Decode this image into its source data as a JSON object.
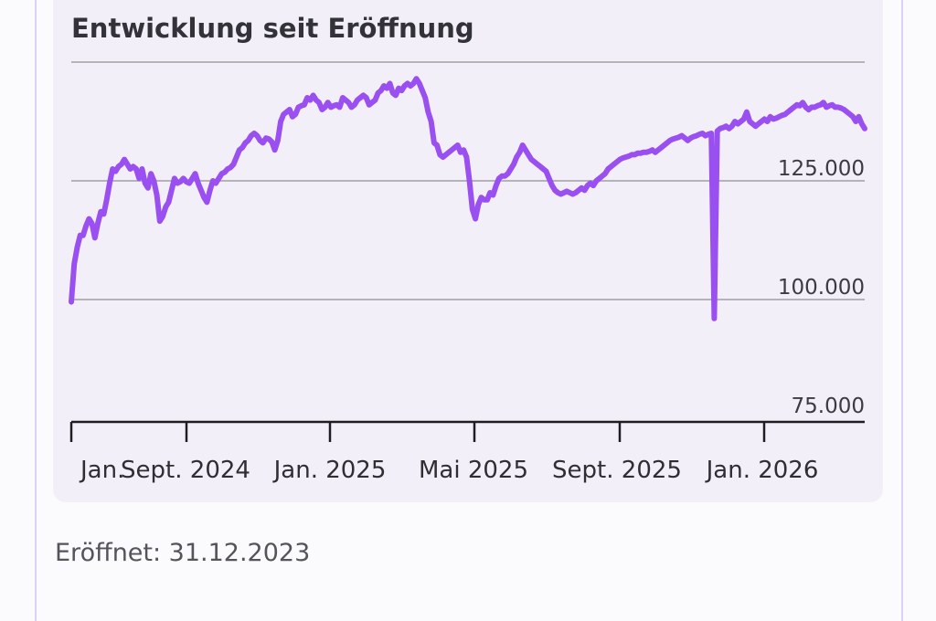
{
  "chart_title": "Entwicklung seit Eröffnung",
  "opened_label": "Eröffnet: 31.12.2023",
  "colors": {
    "line": "#9a50f0",
    "grid": "#b4b3b8",
    "card": "#f3eff9",
    "outer_border": "#dcd0f3"
  },
  "chart_data": {
    "type": "line",
    "title": "Entwicklung seit Eröffnung",
    "xlabel": "",
    "ylabel": "",
    "y_ticks": [
      75000,
      100000,
      125000
    ],
    "y_tick_labels": [
      "75.000",
      "100.000",
      "125.000"
    ],
    "ylim": [
      75000,
      150000
    ],
    "grid": true,
    "x_tick_labels": [
      "Jan.",
      "Sept. 2024",
      "Jan. 2025",
      "Mai 2025",
      "Sept. 2025",
      "Jan. 2026"
    ],
    "series": [
      {
        "values": [
          99500,
          107500,
          111000,
          113500,
          113500,
          115500,
          117000,
          116000,
          113000,
          116000,
          118500,
          118000,
          121000,
          124500,
          127500,
          127000,
          128000,
          128500,
          129500,
          128500,
          127500,
          128000,
          127500,
          125500,
          127500,
          124500,
          123500,
          126500,
          125000,
          122000,
          116500,
          117500,
          119500,
          120500,
          123000,
          125500,
          124500,
          124800,
          125500,
          124800,
          124500,
          125500,
          126500,
          124500,
          123000,
          121500,
          120500,
          123000,
          125000,
          124500,
          125500,
          126500,
          126800,
          127500,
          127800,
          128500,
          130000,
          131500,
          132000,
          133000,
          133500,
          134500,
          135000,
          134500,
          133500,
          133000,
          134000,
          133800,
          133200,
          131500,
          133500,
          137500,
          139000,
          139500,
          140000,
          138500,
          139000,
          140500,
          140800,
          141000,
          142500,
          142000,
          143000,
          142000,
          141500,
          140000,
          140500,
          141500,
          140500,
          140800,
          141000,
          140500,
          142500,
          142000,
          141500,
          140500,
          141000,
          142000,
          142500,
          143000,
          142500,
          141000,
          141500,
          142000,
          143500,
          144000,
          145000,
          144500,
          145500,
          143500,
          143000,
          144500,
          144000,
          145000,
          145500,
          145000,
          145500,
          146500,
          145500,
          144000,
          142500,
          139500,
          137500,
          133000,
          132500,
          130500,
          130000,
          130500,
          131000,
          131500,
          132000,
          132500,
          131000,
          131500,
          130000,
          125000,
          119000,
          117000,
          120000,
          121500,
          121000,
          121000,
          122500,
          122000,
          124000,
          125500,
          126000,
          126000,
          126500,
          127500,
          128500,
          130000,
          131000,
          132500,
          131500,
          130500,
          129500,
          129000,
          128500,
          128000,
          127500,
          127000,
          125500,
          124000,
          123000,
          122500,
          122200,
          122500,
          122800,
          122500,
          122200,
          122500,
          123000,
          123500,
          123000,
          124000,
          124500,
          124000,
          125000,
          125500,
          126000,
          126500,
          127500,
          128000,
          128500,
          129000,
          129500,
          129800,
          130000,
          130200,
          130500,
          130500,
          130800,
          130800,
          131000,
          131000,
          131200,
          131500,
          131000,
          131500,
          132000,
          132500,
          133000,
          133500,
          133800,
          134000,
          134200,
          134500,
          134000,
          133500,
          134000,
          134300,
          134500,
          134800,
          135000,
          134500,
          134800,
          135000,
          96000,
          135500,
          136000,
          136200,
          136500,
          136000,
          136500,
          137500,
          137000,
          137500,
          138000,
          139500,
          137500,
          137000,
          136500,
          137000,
          137500,
          138000,
          137500,
          138500,
          138000,
          138200,
          138500,
          138800,
          139000,
          139500,
          140000,
          140500,
          141000,
          140800,
          141500,
          140500,
          140000,
          140500,
          140500,
          140800,
          141000,
          141500,
          140500,
          140800,
          141000,
          140500,
          140500,
          140300,
          140000,
          139500,
          139000,
          138500,
          137500,
          138500,
          137000,
          136000
        ]
      }
    ]
  }
}
